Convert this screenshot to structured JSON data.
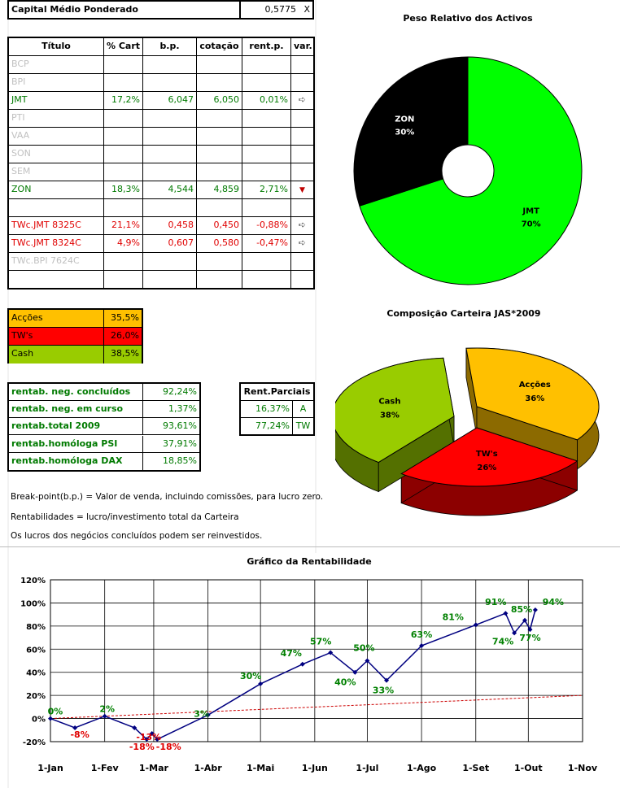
{
  "header": {
    "label": "Capital Médio Ponderado",
    "value": "0,5775",
    "unit": "X"
  },
  "table": {
    "columns": [
      "Título",
      "% Cart",
      "b.p.",
      "cotação",
      "rent.p.",
      "var."
    ],
    "rows": [
      {
        "titulo": "BCP",
        "cart": "",
        "bp": "",
        "cot": "",
        "rent": "",
        "var": "",
        "style": "grey"
      },
      {
        "titulo": "BPI",
        "cart": "",
        "bp": "",
        "cot": "",
        "rent": "",
        "var": "",
        "style": "grey"
      },
      {
        "titulo": "JMT",
        "cart": "17,2%",
        "bp": "6,047",
        "cot": "6,050",
        "rent": "0,01%",
        "var": "right-arrow",
        "style": "green"
      },
      {
        "titulo": "PTI",
        "cart": "",
        "bp": "",
        "cot": "",
        "rent": "",
        "var": "",
        "style": "grey"
      },
      {
        "titulo": "VAA",
        "cart": "",
        "bp": "",
        "cot": "",
        "rent": "",
        "var": "",
        "style": "grey"
      },
      {
        "titulo": "SON",
        "cart": "",
        "bp": "",
        "cot": "",
        "rent": "",
        "var": "",
        "style": "grey"
      },
      {
        "titulo": "SEM",
        "cart": "",
        "bp": "",
        "cot": "",
        "rent": "",
        "var": "",
        "style": "grey"
      },
      {
        "titulo": "ZON",
        "cart": "18,3%",
        "bp": "4,544",
        "cot": "4,859",
        "rent": "2,71%",
        "var": "down-arrow",
        "style": "green"
      },
      {
        "titulo": "",
        "cart": "",
        "bp": "",
        "cot": "",
        "rent": "",
        "var": "",
        "style": ""
      },
      {
        "titulo": "TWc.JMT 8325C",
        "cart": "21,1%",
        "bp": "0,458",
        "cot": "0,450",
        "rent": "-0,88%",
        "var": "right-arrow",
        "style": "red"
      },
      {
        "titulo": "TWc.JMT 8324C",
        "cart": "4,9%",
        "bp": "0,607",
        "cot": "0,580",
        "rent": "-0,47%",
        "var": "right-arrow",
        "style": "red"
      },
      {
        "titulo": "TWc.BPI 7624C",
        "cart": "",
        "bp": "",
        "cot": "",
        "rent": "",
        "var": "",
        "style": "grey"
      },
      {
        "titulo": "",
        "cart": "",
        "bp": "",
        "cot": "",
        "rent": "",
        "var": "",
        "style": ""
      }
    ]
  },
  "composition": [
    {
      "label": "Acções",
      "value": "35,5%",
      "color": "#ffc000"
    },
    {
      "label": "TW's",
      "value": "26,0%",
      "color": "#ff0000"
    },
    {
      "label": "Cash",
      "value": "38,5%",
      "color": "#99cc00"
    }
  ],
  "rentab": [
    {
      "label": "rentab. neg. concluídos",
      "value": "92,24%"
    },
    {
      "label": "rentab. neg. em curso",
      "value": "1,37%"
    },
    {
      "label": "rentab.total 2009",
      "value": "93,61%"
    },
    {
      "label": "rentab.homóloga PSI",
      "value": "37,91%"
    },
    {
      "label": "rentab.homóloga DAX",
      "value": "18,85%"
    }
  ],
  "parciais": {
    "header": "Rent.Parciais",
    "rows": [
      {
        "value": "16,37%",
        "code": "A"
      },
      {
        "value": "77,24%",
        "code": "TW"
      }
    ]
  },
  "notes": [
    "Break-point(b.p.) = Valor de venda, incluindo comissões, para lucro zero.",
    "Rentabilidades = lucro/investimento total da Carteira",
    "Os lucros dos negócios concluídos podem ser reinvestidos."
  ],
  "chart_data": [
    {
      "type": "pie",
      "variant": "doughnut",
      "title": "Peso Relativo dos Activos",
      "slices": [
        {
          "label": "ZON",
          "value": 30,
          "text": "30%",
          "color": "#000000",
          "text_color": "#ffffff"
        },
        {
          "label": "JMT",
          "value": 70,
          "text": "70%",
          "color": "#00ff00",
          "text_color": "#000000"
        }
      ]
    },
    {
      "type": "pie",
      "variant": "3d-exploded",
      "title": "Composição Carteira JAS*2009",
      "slices": [
        {
          "label": "Acções",
          "value": 36,
          "text": "36%",
          "color": "#ffc000"
        },
        {
          "label": "TW's",
          "value": 26,
          "text": "26%",
          "color": "#ff0000"
        },
        {
          "label": "Cash",
          "value": 38,
          "text": "38%",
          "color": "#99cc00"
        }
      ]
    },
    {
      "type": "line",
      "title": "Gráfico da Rentabilidade",
      "x_unit": "date-2009",
      "x_ticks": [
        "1-Jan",
        "1-Fev",
        "1-Mar",
        "1-Abr",
        "1-Mai",
        "1-Jun",
        "1-Jul",
        "1-Ago",
        "1-Set",
        "1-Out",
        "1-Nov"
      ],
      "x_tick_days": [
        0,
        31,
        59,
        90,
        120,
        151,
        181,
        212,
        243,
        273,
        304
      ],
      "ylim": [
        -20,
        120
      ],
      "y_ticks": [
        -20,
        0,
        20,
        40,
        60,
        80,
        100,
        120
      ],
      "y_tick_labels": [
        "-20%",
        "0%",
        "20%",
        "40%",
        "60%",
        "80%",
        "100%",
        "120%"
      ],
      "grid": true,
      "series": [
        {
          "style": "line-markers",
          "color": "#000080",
          "points": [
            {
              "x": "1-Jan",
              "day": 0,
              "y": 0
            },
            {
              "x": "15-Jan",
              "day": 14,
              "y": -8
            },
            {
              "x": "1-Fev",
              "day": 31,
              "y": 2
            },
            {
              "x": "18-Fev",
              "day": 48,
              "y": -8
            },
            {
              "x": "25-Fev",
              "day": 55,
              "y": -18
            },
            {
              "x": "28-Fev",
              "day": 58,
              "y": -13
            },
            {
              "x": "3-Mar",
              "day": 61,
              "y": -18
            },
            {
              "x": "1-Abr",
              "day": 90,
              "y": 3
            },
            {
              "x": "1-Mai",
              "day": 120,
              "y": 30
            },
            {
              "x": "25-Mai",
              "day": 144,
              "y": 47
            },
            {
              "x": "10-Jun",
              "day": 160,
              "y": 57
            },
            {
              "x": "24-Jun",
              "day": 174,
              "y": 40
            },
            {
              "x": "1-Jul",
              "day": 181,
              "y": 50
            },
            {
              "x": "12-Jul",
              "day": 192,
              "y": 33
            },
            {
              "x": "1-Ago",
              "day": 212,
              "y": 63
            },
            {
              "x": "1-Set",
              "day": 243,
              "y": 81
            },
            {
              "x": "18-Set",
              "day": 260,
              "y": 91
            },
            {
              "x": "23-Set",
              "day": 265,
              "y": 74
            },
            {
              "x": "29-Set",
              "day": 271,
              "y": 85
            },
            {
              "x": "2-Out",
              "day": 274,
              "y": 77
            },
            {
              "x": "5-Out",
              "day": 277,
              "y": 94
            }
          ]
        },
        {
          "style": "dashed-trend",
          "color": "#cc0000",
          "points": [
            {
              "day": 0,
              "y": 0
            },
            {
              "day": 304,
              "y": 20
            }
          ]
        }
      ],
      "data_labels": [
        {
          "text": "0%",
          "day": 0,
          "y": 0,
          "color": "#008000"
        },
        {
          "text": "-8%",
          "day": 14,
          "y": -8,
          "color": "#e00000"
        },
        {
          "text": "2%",
          "day": 31,
          "y": 2,
          "color": "#008000"
        },
        {
          "text": "-18%",
          "day": 55,
          "y": -18,
          "color": "#e00000"
        },
        {
          "text": "-13%",
          "day": 58,
          "y": -13,
          "color": "#e00000"
        },
        {
          "text": "-18%",
          "day": 61,
          "y": -18,
          "color": "#e00000"
        },
        {
          "text": "3%",
          "day": 90,
          "y": 3,
          "color": "#008000"
        },
        {
          "text": "30%",
          "day": 120,
          "y": 30,
          "color": "#008000"
        },
        {
          "text": "47%",
          "day": 144,
          "y": 47,
          "color": "#008000"
        },
        {
          "text": "57%",
          "day": 160,
          "y": 57,
          "color": "#008000"
        },
        {
          "text": "40%",
          "day": 174,
          "y": 40,
          "color": "#008000"
        },
        {
          "text": "50%",
          "day": 181,
          "y": 50,
          "color": "#008000"
        },
        {
          "text": "33%",
          "day": 192,
          "y": 33,
          "color": "#008000"
        },
        {
          "text": "63%",
          "day": 212,
          "y": 63,
          "color": "#008000"
        },
        {
          "text": "81%",
          "day": 243,
          "y": 81,
          "color": "#008000"
        },
        {
          "text": "91%",
          "day": 260,
          "y": 91,
          "color": "#008000"
        },
        {
          "text": "74%",
          "day": 265,
          "y": 74,
          "color": "#008000"
        },
        {
          "text": "85%",
          "day": 271,
          "y": 85,
          "color": "#008000"
        },
        {
          "text": "77%",
          "day": 274,
          "y": 77,
          "color": "#008000"
        },
        {
          "text": "94%",
          "day": 277,
          "y": 94,
          "color": "#008000"
        }
      ]
    }
  ]
}
